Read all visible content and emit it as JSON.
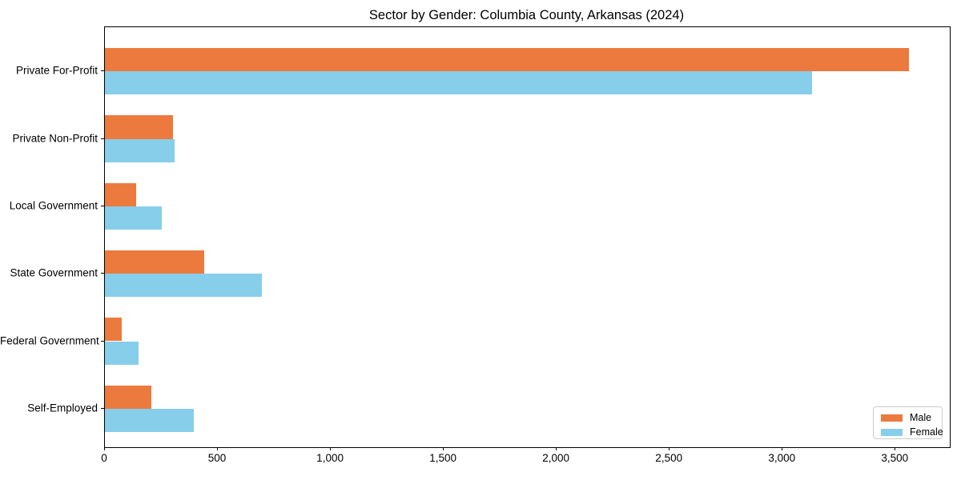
{
  "chart_data": {
    "type": "bar",
    "orientation": "horizontal",
    "title": "Sector by Gender: Columbia County, Arkansas (2024)",
    "categories": [
      "Private For-Profit",
      "Private Non-Profit",
      "Local Government",
      "State Government",
      "Federal Government",
      "Self-Employed"
    ],
    "series": [
      {
        "name": "Male",
        "color": "#ec7a3e",
        "values": [
          3560,
          300,
          140,
          440,
          75,
          205
        ]
      },
      {
        "name": "Female",
        "color": "#87ceeb",
        "values": [
          3130,
          310,
          250,
          695,
          150,
          395
        ]
      }
    ],
    "xlabel": "",
    "ylabel": "",
    "xlim": [
      0,
      3740
    ],
    "xticks": [
      0,
      500,
      1000,
      1500,
      2000,
      2500,
      3000,
      3500
    ],
    "xtick_labels": [
      "0",
      "500",
      "1,000",
      "1,500",
      "2,000",
      "2,500",
      "3,000",
      "3,500"
    ],
    "grid": false,
    "legend": {
      "position": "lower right",
      "entries": [
        "Male",
        "Female"
      ]
    },
    "colors": {
      "male": "#ec7a3e",
      "female": "#87ceeb",
      "spine": "#000000",
      "legend_border": "#cccccc"
    }
  }
}
